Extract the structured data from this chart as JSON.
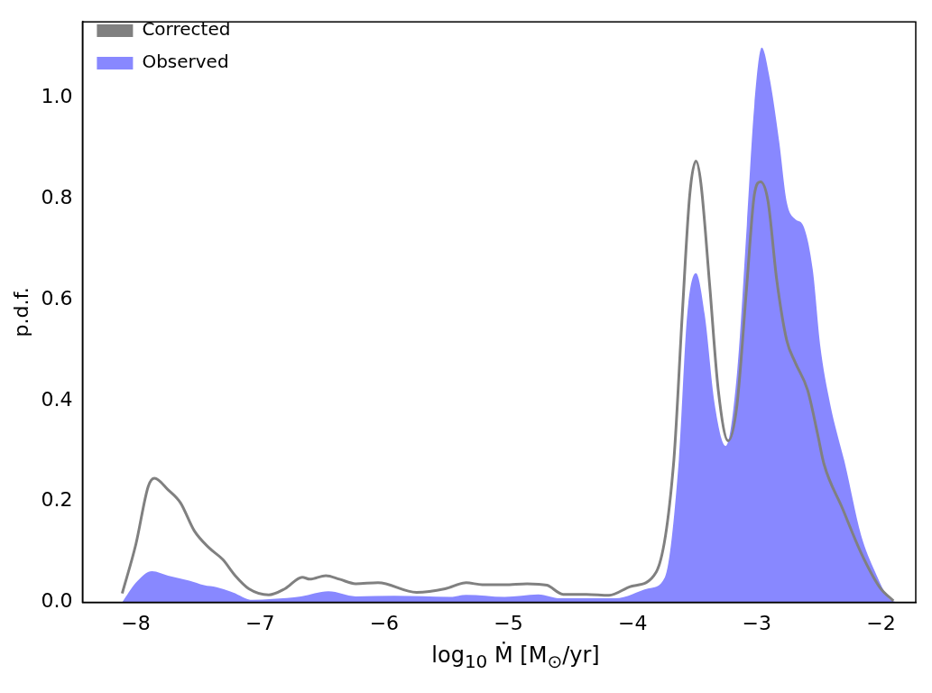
{
  "chart_data": {
    "type": "line",
    "xlabel": "log$_{10}$ Ṁ [M$_{⊙}$/yr]",
    "ylabel": "p.d.f.",
    "xlim": [
      -8.43,
      -1.72
    ],
    "xticks": [
      -8,
      -7,
      -6,
      -5,
      -4,
      -3,
      -2
    ],
    "ylim": [
      0,
      1.15
    ],
    "yticks": [
      {
        "value": 0,
        "label": "0.0"
      },
      {
        "value": 0.2,
        "label": "0.2"
      },
      {
        "value": 0.4,
        "label": "0.4"
      },
      {
        "value": 0.6,
        "label": "0.6"
      },
      {
        "value": 0.8,
        "label": "0.8"
      },
      {
        "value": 1.0,
        "label": "1.0"
      }
    ],
    "legend": "top left",
    "grid": false,
    "series": [
      {
        "name": "Corrected",
        "type": "line",
        "color": "#808080",
        "x": [
          -8.11,
          -8.0,
          -7.9,
          -7.85,
          -7.74,
          -7.64,
          -7.53,
          -7.41,
          -7.3,
          -7.2,
          -7.09,
          -6.93,
          -6.8,
          -6.66,
          -6.6,
          -6.47,
          -6.36,
          -6.23,
          -6.05,
          -5.74,
          -5.51,
          -5.34,
          -5.21,
          -5.03,
          -4.85,
          -4.69,
          -4.56,
          -4.37,
          -4.19,
          -4.01,
          -3.81,
          -3.67,
          -3.6,
          -3.54,
          -3.49,
          -3.45,
          -3.38,
          -3.31,
          -3.23,
          -3.16,
          -3.08,
          -3.02,
          -2.97,
          -2.91,
          -2.84,
          -2.76,
          -2.69,
          -2.59,
          -2.51,
          -2.46,
          -2.31,
          -2.16,
          -2.01,
          -1.9
        ],
        "values": [
          0.018,
          0.115,
          0.23,
          0.246,
          0.223,
          0.197,
          0.142,
          0.108,
          0.085,
          0.053,
          0.027,
          0.015,
          0.027,
          0.05,
          0.046,
          0.053,
          0.046,
          0.037,
          0.039,
          0.02,
          0.027,
          0.039,
          0.035,
          0.035,
          0.037,
          0.034,
          0.016,
          0.016,
          0.014,
          0.032,
          0.06,
          0.275,
          0.571,
          0.807,
          0.874,
          0.83,
          0.63,
          0.42,
          0.32,
          0.39,
          0.63,
          0.807,
          0.833,
          0.795,
          0.64,
          0.52,
          0.475,
          0.42,
          0.333,
          0.275,
          0.186,
          0.098,
          0.03,
          0.003
        ]
      },
      {
        "name": "Observed",
        "type": "area",
        "color": "#8888ff",
        "x": [
          -8.11,
          -8.0,
          -7.87,
          -7.74,
          -7.57,
          -7.45,
          -7.35,
          -7.22,
          -7.06,
          -6.9,
          -6.67,
          -6.45,
          -6.23,
          -5.92,
          -5.47,
          -5.34,
          -5.03,
          -4.76,
          -4.58,
          -4.37,
          -4.14,
          -3.87,
          -3.74,
          -3.63,
          -3.56,
          -3.49,
          -3.42,
          -3.34,
          -3.25,
          -3.16,
          -3.08,
          -3.02,
          -2.96,
          -2.9,
          -2.82,
          -2.76,
          -2.69,
          -2.63,
          -2.55,
          -2.49,
          -2.41,
          -2.29,
          -2.16,
          -2.05,
          -1.94,
          -1.88
        ],
        "values": [
          0,
          0.039,
          0.062,
          0.053,
          0.043,
          0.034,
          0.03,
          0.02,
          0.005,
          0.007,
          0.012,
          0.022,
          0.012,
          0.013,
          0.011,
          0.015,
          0.011,
          0.016,
          0.008,
          0.008,
          0.008,
          0.028,
          0.05,
          0.275,
          0.571,
          0.652,
          0.571,
          0.394,
          0.31,
          0.452,
          0.748,
          0.984,
          1.099,
          1.043,
          0.913,
          0.794,
          0.759,
          0.748,
          0.66,
          0.51,
          0.394,
          0.275,
          0.133,
          0.062,
          0.009,
          0
        ]
      }
    ]
  }
}
